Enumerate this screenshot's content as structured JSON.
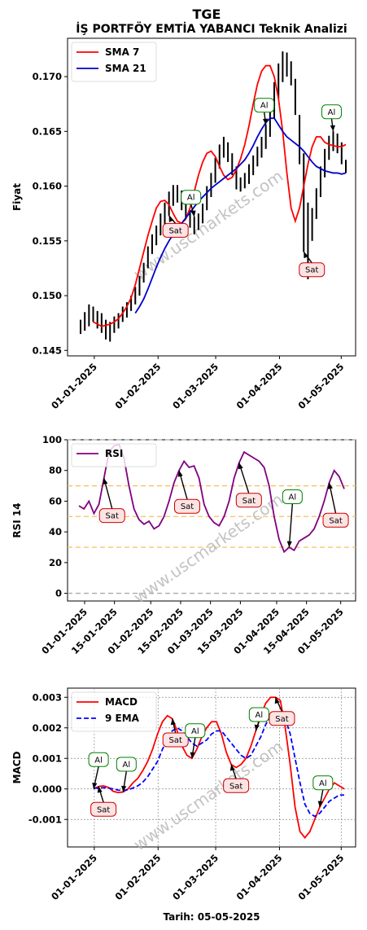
{
  "header": {
    "title": "TGE",
    "subtitle": "İŞ PORTFÖY EMTİA YABANCI Teknik Analizi",
    "footer": "Tarih: 05-05-2025",
    "watermark": "www.uscmarkets.com"
  },
  "colors": {
    "sma7": "#ff0000",
    "sma21": "#0000cc",
    "rsi": "#800080",
    "macd": "#ff0000",
    "ema": "#0000ff",
    "buy_border": "#008000",
    "sell_border": "#cc0000",
    "sell_fill": "#fde3e3",
    "buy_fill": "#ffffff",
    "level_line": "#f5c060"
  },
  "chart_data": [
    {
      "type": "line",
      "panel": "price",
      "ylabel": "Fiyat",
      "ylim": [
        0.1445,
        0.1735
      ],
      "yticks": [
        "0.145",
        "0.150",
        "0.155",
        "0.160",
        "0.165",
        "0.170"
      ],
      "xticks": [
        "01-01-2025",
        "01-02-2025",
        "01-03-2025",
        "01-04-2025",
        "01-05-2025"
      ],
      "legend": [
        "SMA 7",
        "SMA 21"
      ],
      "x_start": "2024-12-19",
      "x_end": "2025-05-05",
      "price_bars": [
        [
          0.147,
          0.1465,
          0.1478
        ],
        [
          0.1475,
          0.1468,
          0.1485
        ],
        [
          0.148,
          0.1472,
          0.1492
        ],
        [
          0.1484,
          0.1476,
          0.149
        ],
        [
          0.148,
          0.147,
          0.1486
        ],
        [
          0.1476,
          0.1466,
          0.1484
        ],
        [
          0.1472,
          0.146,
          0.1478
        ],
        [
          0.147,
          0.1458,
          0.1476
        ],
        [
          0.1474,
          0.1466,
          0.1481
        ],
        [
          0.1478,
          0.147,
          0.1484
        ],
        [
          0.1482,
          0.1476,
          0.149
        ],
        [
          0.1488,
          0.148,
          0.1494
        ],
        [
          0.1493,
          0.1486,
          0.15
        ],
        [
          0.15,
          0.1492,
          0.1508
        ],
        [
          0.151,
          0.15,
          0.1518
        ],
        [
          0.1522,
          0.1512,
          0.153
        ],
        [
          0.1535,
          0.1525,
          0.1545
        ],
        [
          0.1548,
          0.1538,
          0.1556
        ],
        [
          0.1556,
          0.1546,
          0.1564
        ],
        [
          0.1565,
          0.1555,
          0.1575
        ],
        [
          0.1575,
          0.1564,
          0.1585
        ],
        [
          0.1585,
          0.1573,
          0.1595
        ],
        [
          0.1593,
          0.1582,
          0.1601
        ],
        [
          0.1595,
          0.1585,
          0.1601
        ],
        [
          0.159,
          0.1578,
          0.1596
        ],
        [
          0.158,
          0.157,
          0.1588
        ],
        [
          0.157,
          0.1562,
          0.1578
        ],
        [
          0.1565,
          0.1556,
          0.1572
        ],
        [
          0.1568,
          0.156,
          0.1575
        ],
        [
          0.1575,
          0.1566,
          0.1584
        ],
        [
          0.1588,
          0.1578,
          0.16
        ],
        [
          0.16,
          0.159,
          0.1612
        ],
        [
          0.1615,
          0.1603,
          0.1626
        ],
        [
          0.1628,
          0.1616,
          0.1638
        ],
        [
          0.1637,
          0.1626,
          0.1645
        ],
        [
          0.1633,
          0.1622,
          0.164
        ],
        [
          0.1622,
          0.161,
          0.163
        ],
        [
          0.161,
          0.1597,
          0.1618
        ],
        [
          0.1602,
          0.1595,
          0.1608
        ],
        [
          0.1605,
          0.1598,
          0.1612
        ],
        [
          0.1612,
          0.1602,
          0.162
        ],
        [
          0.162,
          0.161,
          0.1628
        ],
        [
          0.1628,
          0.1618,
          0.1636
        ],
        [
          0.1636,
          0.1626,
          0.1645
        ],
        [
          0.1646,
          0.1634,
          0.1656
        ],
        [
          0.166,
          0.1645,
          0.1672
        ],
        [
          0.168,
          0.1662,
          0.1695
        ],
        [
          0.1698,
          0.168,
          0.1712
        ],
        [
          0.171,
          0.1695,
          0.1723
        ],
        [
          0.1712,
          0.17,
          0.1722
        ],
        [
          0.1705,
          0.1692,
          0.1714
        ],
        [
          0.1685,
          0.1665,
          0.1698
        ],
        [
          0.165,
          0.162,
          0.1665
        ],
        [
          0.16,
          0.154,
          0.163
        ],
        [
          0.1545,
          0.1515,
          0.1585
        ],
        [
          0.1565,
          0.155,
          0.158
        ],
        [
          0.1585,
          0.157,
          0.1598
        ],
        [
          0.1605,
          0.159,
          0.1618
        ],
        [
          0.1622,
          0.1608,
          0.1634
        ],
        [
          0.1636,
          0.1624,
          0.1646
        ],
        [
          0.1642,
          0.1632,
          0.165
        ],
        [
          0.164,
          0.163,
          0.1648
        ],
        [
          0.163,
          0.162,
          0.164
        ],
        [
          0.1618,
          0.1612,
          0.1624
        ]
      ],
      "series": [
        {
          "name": "SMA 7",
          "x_index_start": 3,
          "values": [
            0.1476,
            0.1474,
            0.1472,
            0.1473,
            0.1474,
            0.1476,
            0.1479,
            0.1484,
            0.149,
            0.1498,
            0.151,
            0.1525,
            0.154,
            0.1555,
            0.1568,
            0.158,
            0.1586,
            0.1587,
            0.1583,
            0.1575,
            0.1568,
            0.1566,
            0.157,
            0.158,
            0.1595,
            0.161,
            0.1622,
            0.163,
            0.1632,
            0.1627,
            0.1618,
            0.161,
            0.1606,
            0.1608,
            0.1615,
            0.1625,
            0.1638,
            0.1655,
            0.1675,
            0.1693,
            0.1705,
            0.171,
            0.171,
            0.17,
            0.168,
            0.165,
            0.1612,
            0.158,
            0.1568,
            0.158,
            0.16,
            0.162,
            0.1636,
            0.1645,
            0.1645,
            0.164,
            0.1638,
            0.1637,
            0.1636,
            0.1636,
            0.1638
          ]
        },
        {
          "name": "SMA 21",
          "x_index_start": 13,
          "values": [
            0.1484,
            0.149,
            0.1497,
            0.1506,
            0.1516,
            0.1526,
            0.1535,
            0.1543,
            0.155,
            0.1556,
            0.1561,
            0.1566,
            0.1571,
            0.1576,
            0.1581,
            0.1586,
            0.159,
            0.1594,
            0.1598,
            0.1601,
            0.1604,
            0.1607,
            0.161,
            0.1613,
            0.1616,
            0.162,
            0.1624,
            0.163,
            0.1637,
            0.1645,
            0.1652,
            0.1658,
            0.1662,
            0.1662,
            0.1656,
            0.165,
            0.1645,
            0.1642,
            0.1639,
            0.1636,
            0.1632,
            0.1627,
            0.1622,
            0.1618,
            0.1616,
            0.1614,
            0.1613,
            0.1612,
            0.1612,
            0.1611,
            0.1612
          ]
        }
      ],
      "signals": [
        {
          "label": "Sat",
          "type": "sell",
          "x_index": 21,
          "text_dx": 8,
          "text_dy": 18
        },
        {
          "label": "Al",
          "type": "buy",
          "x_index": 27,
          "text_dx": -4,
          "text_dy": -24
        },
        {
          "label": "Al",
          "type": "buy",
          "x_index": 44,
          "text_dx": -2,
          "text_dy": -24
        },
        {
          "label": "Sat",
          "type": "sell",
          "x_index": 53,
          "text_dx": 10,
          "text_dy": 22
        },
        {
          "label": "Al",
          "type": "buy",
          "x_index": 60,
          "text_dx": -2,
          "text_dy": -24
        }
      ]
    },
    {
      "type": "line",
      "panel": "rsi",
      "ylabel": "RSI 14",
      "ylim": [
        -5,
        100
      ],
      "yticks": [
        "0",
        "20",
        "40",
        "60",
        "80",
        "100"
      ],
      "levels": [
        0,
        30,
        50,
        70,
        100
      ],
      "xticks": [
        "01-01-2025",
        "15-01-2025",
        "01-02-2025",
        "15-02-2025",
        "01-03-2025",
        "15-03-2025",
        "01-04-2025",
        "15-04-2025",
        "01-05-2025"
      ],
      "legend": [
        "RSI"
      ],
      "series": [
        {
          "name": "RSI",
          "x_index_start": 0,
          "values": [
            57,
            55,
            60,
            52,
            58,
            75,
            92,
            96,
            97,
            88,
            70,
            55,
            48,
            45,
            47,
            42,
            44,
            50,
            60,
            72,
            80,
            86,
            82,
            83,
            75,
            58,
            50,
            46,
            44,
            50,
            60,
            75,
            85,
            92,
            90,
            88,
            86,
            82,
            70,
            50,
            35,
            27,
            30,
            28,
            34,
            36,
            38,
            42,
            50,
            60,
            72,
            80,
            76,
            68
          ]
        }
      ],
      "signals": [
        {
          "label": "Sat",
          "type": "sell",
          "x_index": 5,
          "text_dx": 10,
          "text_dy": 46
        },
        {
          "label": "Sat",
          "type": "sell",
          "x_index": 20,
          "text_dx": 10,
          "text_dy": 44
        },
        {
          "label": "Sat",
          "type": "sell",
          "x_index": 32,
          "text_dx": 12,
          "text_dy": 46
        },
        {
          "label": "Al",
          "type": "buy",
          "x_index": 42,
          "text_dx": 4,
          "text_dy": -62
        },
        {
          "label": "Sat",
          "type": "sell",
          "x_index": 50,
          "text_dx": 8,
          "text_dy": 46
        }
      ]
    },
    {
      "type": "line",
      "panel": "macd",
      "ylabel": "MACD",
      "ylim": [
        -0.0019,
        0.0033
      ],
      "yticks": [
        "-0.001",
        "0.000",
        "0.001",
        "0.002",
        "0.003"
      ],
      "xticks": [
        "01-01-2025",
        "01-02-2025",
        "01-03-2025",
        "01-04-2025",
        "01-05-2025"
      ],
      "legend": [
        "MACD",
        "9 EMA"
      ],
      "series": [
        {
          "name": "MACD",
          "x_index_start": 3,
          "values": [
            0.0,
            8e-05,
            0.0001,
            5e-05,
            -8e-05,
            -0.00012,
            -0.0001,
            0.0,
            0.0002,
            0.00035,
            0.0006,
            0.0009,
            0.0013,
            0.0018,
            0.0022,
            0.0024,
            0.0023,
            0.0019,
            0.0014,
            0.0011,
            0.001,
            0.0013,
            0.0017,
            0.002,
            0.0022,
            0.0022,
            0.0018,
            0.0012,
            0.0008,
            0.0007,
            0.0008,
            0.001,
            0.0014,
            0.0019,
            0.0024,
            0.0028,
            0.003,
            0.003,
            0.0029,
            0.002,
            0.0008,
            -0.0006,
            -0.0014,
            -0.0016,
            -0.0014,
            -0.001,
            -0.0006,
            -0.0003,
            0.0,
            0.0002,
            0.0001,
            0.0
          ]
        },
        {
          "name": "9 EMA",
          "x_index_start": 3,
          "values": [
            2e-05,
            3e-05,
            4e-05,
            3e-05,
            0.0,
            -4e-05,
            -5e-05,
            -3e-05,
            3e-05,
            0.0001,
            0.00022,
            0.0004,
            0.00065,
            0.0009,
            0.0013,
            0.0016,
            0.0019,
            0.002,
            0.0019,
            0.0017,
            0.0015,
            0.0014,
            0.0015,
            0.0016,
            0.0018,
            0.0019,
            0.0019,
            0.0017,
            0.0015,
            0.0013,
            0.0011,
            0.001,
            0.0011,
            0.0014,
            0.0017,
            0.0021,
            0.0024,
            0.0025,
            0.0025,
            0.0023,
            0.0018,
            0.001,
            0.0002,
            -0.0005,
            -0.0008,
            -0.0009,
            -0.0008,
            -0.0006,
            -0.0004,
            -0.0003,
            -0.0002,
            -0.0002
          ]
        }
      ],
      "signals": [
        {
          "label": "Sat",
          "type": "sell",
          "x_index": 4,
          "text_dx": 6,
          "text_dy": 28
        },
        {
          "label": "Al",
          "type": "buy",
          "x_index": 3,
          "text_dx": 6,
          "text_dy": -36
        },
        {
          "label": "Al",
          "type": "buy",
          "x_index": 9,
          "text_dx": 4,
          "text_dy": -34
        },
        {
          "label": "Sat",
          "type": "sell",
          "x_index": 19,
          "text_dx": 4,
          "text_dy": 26
        },
        {
          "label": "Al",
          "type": "buy",
          "x_index": 23,
          "text_dx": 4,
          "text_dy": -34
        },
        {
          "label": "Sat",
          "type": "sell",
          "x_index": 31,
          "text_dx": 6,
          "text_dy": 26
        },
        {
          "label": "Al",
          "type": "buy",
          "x_index": 36,
          "text_dx": 4,
          "text_dy": -20
        },
        {
          "label": "Sat",
          "type": "sell",
          "x_index": 40,
          "text_dx": 8,
          "text_dy": 26
        },
        {
          "label": "Al",
          "type": "buy",
          "x_index": 49,
          "text_dx": 4,
          "text_dy": -30
        }
      ]
    }
  ]
}
